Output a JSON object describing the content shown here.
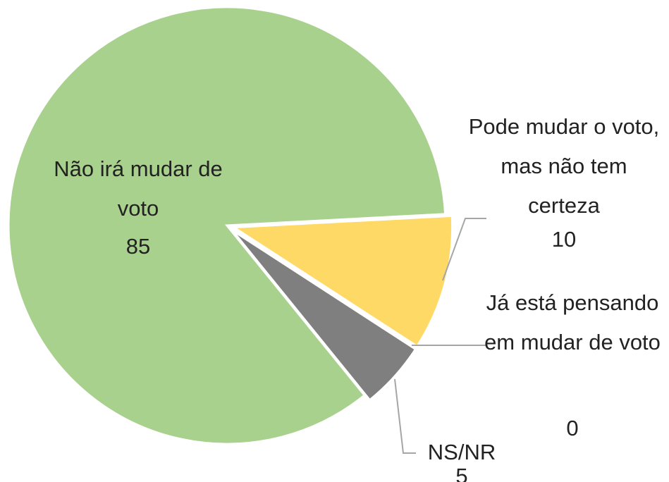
{
  "chart_data": {
    "type": "pie",
    "categories": [
      "Pode mudar o voto, mas não tem certeza",
      "Já está pensando em mudar de voto",
      "NS/NR",
      "Não irá mudar de voto"
    ],
    "values": [
      10,
      0,
      5,
      85
    ],
    "colors": [
      "#ffd966",
      "#a5a5a5",
      "#7f7f7f",
      "#a9d18e"
    ]
  }
}
